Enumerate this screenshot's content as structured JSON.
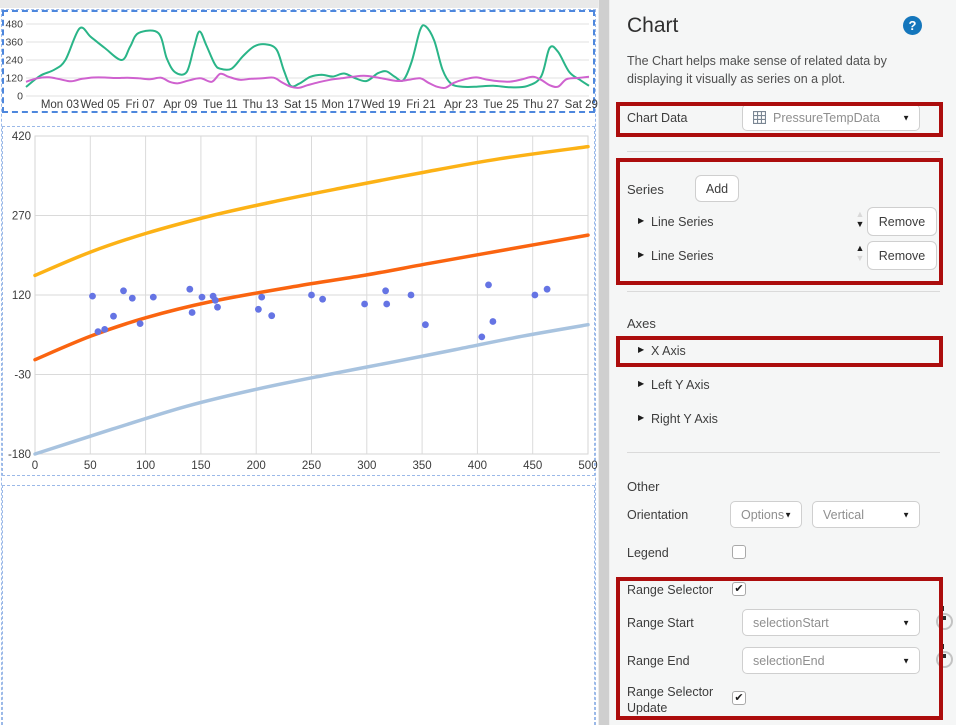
{
  "icons": {
    "help": "?",
    "caret_down": "▼",
    "triangle_up": "▲",
    "triangle_down": "▼",
    "expander": "▶",
    "check": "✔"
  },
  "panel": {
    "title": "Chart",
    "description": "The Chart helps make sense of related data by displaying it visually as series on a plot.",
    "chart_data": {
      "label": "Chart Data",
      "value": "PressureTempData"
    },
    "series": {
      "heading": "Series",
      "add_label": "Add",
      "items": [
        {
          "label": "Line Series",
          "remove_label": "Remove",
          "move_up_enabled": false,
          "move_down_enabled": true
        },
        {
          "label": "Line Series",
          "remove_label": "Remove",
          "move_up_enabled": true,
          "move_down_enabled": false
        }
      ]
    },
    "axes": {
      "heading": "Axes",
      "items": [
        {
          "label": "X Axis"
        },
        {
          "label": "Left Y Axis"
        },
        {
          "label": "Right Y Axis"
        }
      ]
    },
    "other": {
      "heading": "Other",
      "orientation": {
        "label": "Orientation",
        "dropdown1": "Options",
        "dropdown2": "Vertical"
      },
      "legend": {
        "label": "Legend",
        "checked": false
      },
      "range_selector": {
        "label": "Range Selector",
        "checked": true
      },
      "range_start": {
        "label": "Range Start",
        "value": "selectionStart"
      },
      "range_end": {
        "label": "Range End",
        "value": "selectionEnd"
      },
      "range_selector_update": {
        "label": "Range Selector Update",
        "checked": true
      }
    }
  },
  "annotation_color": "#ac0d0d",
  "chart_data": [
    {
      "type": "line",
      "role": "range-selector-preview",
      "ylim": [
        0,
        480
      ],
      "y_ticks": [
        480,
        360,
        240,
        120,
        0
      ],
      "x_labels": [
        "Mon 03",
        "Wed 05",
        "Fri 07",
        "Apr 09",
        "Tue 11",
        "Thu 13",
        "Sat 15",
        "Mon 17",
        "Wed 19",
        "Fri 21",
        "Apr 23",
        "Tue 25",
        "Thu 27",
        "Sat 29"
      ],
      "grid": true,
      "legend": false,
      "series": [
        {
          "name": "series-1",
          "color": "#2ab588",
          "points": [
            [
              0,
              60
            ],
            [
              2.5,
              135
            ],
            [
              5,
              175
            ],
            [
              7,
              240
            ],
            [
              9.5,
              450
            ],
            [
              11.5,
              395
            ],
            [
              14,
              320
            ],
            [
              17,
              240
            ],
            [
              18.5,
              330
            ],
            [
              20,
              420
            ],
            [
              23.5,
              420
            ],
            [
              25,
              250
            ],
            [
              26.5,
              158
            ],
            [
              28.5,
              158
            ],
            [
              29.8,
              320
            ],
            [
              30.8,
              430
            ],
            [
              32,
              340
            ],
            [
              33.5,
              215
            ],
            [
              34.5,
              182
            ],
            [
              36.5,
              182
            ],
            [
              38.5,
              265
            ],
            [
              40.5,
              330
            ],
            [
              42.5,
              345
            ],
            [
              44.5,
              310
            ],
            [
              45.8,
              170
            ],
            [
              47,
              68
            ],
            [
              48.5,
              82
            ],
            [
              50.5,
              128
            ],
            [
              52.5,
              142
            ],
            [
              54.5,
              130
            ],
            [
              56.5,
              150
            ],
            [
              58.5,
              118
            ],
            [
              60.5,
              100
            ],
            [
              62.5,
              152
            ],
            [
              64,
              165
            ],
            [
              65.5,
              128
            ],
            [
              67,
              105
            ],
            [
              68.5,
              230
            ],
            [
              70,
              440
            ],
            [
              71,
              465
            ],
            [
              72.5,
              370
            ],
            [
              74,
              175
            ],
            [
              75.5,
              82
            ],
            [
              77.5,
              62
            ],
            [
              80,
              62
            ],
            [
              83,
              68
            ],
            [
              86,
              58
            ],
            [
              89,
              66
            ],
            [
              91.5,
              130
            ],
            [
              93,
              320
            ],
            [
              94.5,
              295
            ],
            [
              96.5,
              160
            ],
            [
              98.5,
              105
            ],
            [
              100,
              68
            ]
          ]
        },
        {
          "name": "series-2",
          "color": "#cf62cf",
          "points": [
            [
              0,
              95
            ],
            [
              2,
              118
            ],
            [
              4,
              125
            ],
            [
              6,
              112
            ],
            [
              8,
              98
            ],
            [
              10,
              115
            ],
            [
              12,
              123
            ],
            [
              14,
              123
            ],
            [
              16,
              120
            ],
            [
              18,
              122
            ],
            [
              20,
              118
            ],
            [
              22,
              112
            ],
            [
              24,
              122
            ],
            [
              25.5,
              95
            ],
            [
              27,
              85
            ],
            [
              29,
              105
            ],
            [
              31,
              118
            ],
            [
              33,
              95
            ],
            [
              34.5,
              148
            ],
            [
              36,
              128
            ],
            [
              38,
              108
            ],
            [
              40,
              115
            ],
            [
              42,
              118
            ],
            [
              44,
              122
            ],
            [
              45.5,
              90
            ],
            [
              47,
              62
            ],
            [
              48.5,
              55
            ],
            [
              50,
              72
            ],
            [
              52,
              92
            ],
            [
              54,
              108
            ],
            [
              56,
              118
            ],
            [
              58,
              128
            ],
            [
              60,
              135
            ],
            [
              62,
              126
            ],
            [
              64,
              112
            ],
            [
              66,
              100
            ],
            [
              68,
              108
            ],
            [
              70,
              118
            ],
            [
              71.5,
              88
            ],
            [
              73,
              62
            ],
            [
              74.5,
              55
            ],
            [
              76,
              88
            ],
            [
              78,
              112
            ],
            [
              80,
              124
            ],
            [
              82,
              108
            ],
            [
              84,
              98
            ],
            [
              86,
              96
            ],
            [
              88,
              110
            ],
            [
              90,
              128
            ],
            [
              91.5,
              108
            ],
            [
              93,
              72
            ],
            [
              94.5,
              62
            ],
            [
              96,
              112
            ],
            [
              98,
              120
            ],
            [
              100,
              128
            ]
          ]
        }
      ]
    },
    {
      "type": "line+scatter",
      "role": "main-plot",
      "xlim": [
        0,
        500
      ],
      "ylim": [
        -180,
        420
      ],
      "x_ticks": [
        0,
        50,
        100,
        150,
        200,
        250,
        300,
        350,
        400,
        450,
        500
      ],
      "y_ticks": [
        420,
        270,
        120,
        -30,
        -180
      ],
      "grid": true,
      "legend": false,
      "lines": [
        {
          "name": "upper-curve",
          "color": "#fcb216",
          "points": [
            [
              0,
              157
            ],
            [
              50,
              201
            ],
            [
              100,
              236
            ],
            [
              160,
              270
            ],
            [
              220,
              298
            ],
            [
              280,
              323
            ],
            [
              350,
              351
            ],
            [
              420,
              377
            ],
            [
              500,
              400
            ]
          ]
        },
        {
          "name": "middle-curve",
          "color": "#fa6410",
          "points": [
            [
              0,
              -2
            ],
            [
              50,
              42
            ],
            [
              100,
              77
            ],
            [
              160,
              108
            ],
            [
              240,
              138
            ],
            [
              300,
              158
            ],
            [
              360,
              181
            ],
            [
              430,
              207
            ],
            [
              500,
              233
            ]
          ]
        },
        {
          "name": "lower-curve",
          "color": "#a8c3df",
          "points": [
            [
              0,
              -180
            ],
            [
              70,
              -133
            ],
            [
              137,
              -90
            ],
            [
              200,
              -58
            ],
            [
              260,
              -32
            ],
            [
              320,
              -8
            ],
            [
              380,
              17
            ],
            [
              440,
              42
            ],
            [
              500,
              64
            ]
          ]
        }
      ],
      "scatter": {
        "name": "sample-points",
        "color": "#6574e4",
        "points": [
          [
            52,
            118
          ],
          [
            57,
            51
          ],
          [
            63,
            55
          ],
          [
            71,
            80
          ],
          [
            80,
            128
          ],
          [
            88,
            114
          ],
          [
            95,
            66
          ],
          [
            107,
            116
          ],
          [
            140,
            131
          ],
          [
            142,
            87
          ],
          [
            151,
            116
          ],
          [
            161,
            118
          ],
          [
            163,
            110
          ],
          [
            165,
            97
          ],
          [
            202,
            93
          ],
          [
            205,
            116
          ],
          [
            214,
            81
          ],
          [
            250,
            120
          ],
          [
            260,
            112
          ],
          [
            298,
            103
          ],
          [
            317,
            128
          ],
          [
            318,
            103
          ],
          [
            340,
            120
          ],
          [
            353,
            64
          ],
          [
            404,
            41
          ],
          [
            410,
            139
          ],
          [
            414,
            70
          ],
          [
            452,
            120
          ],
          [
            463,
            131
          ]
        ]
      }
    }
  ]
}
